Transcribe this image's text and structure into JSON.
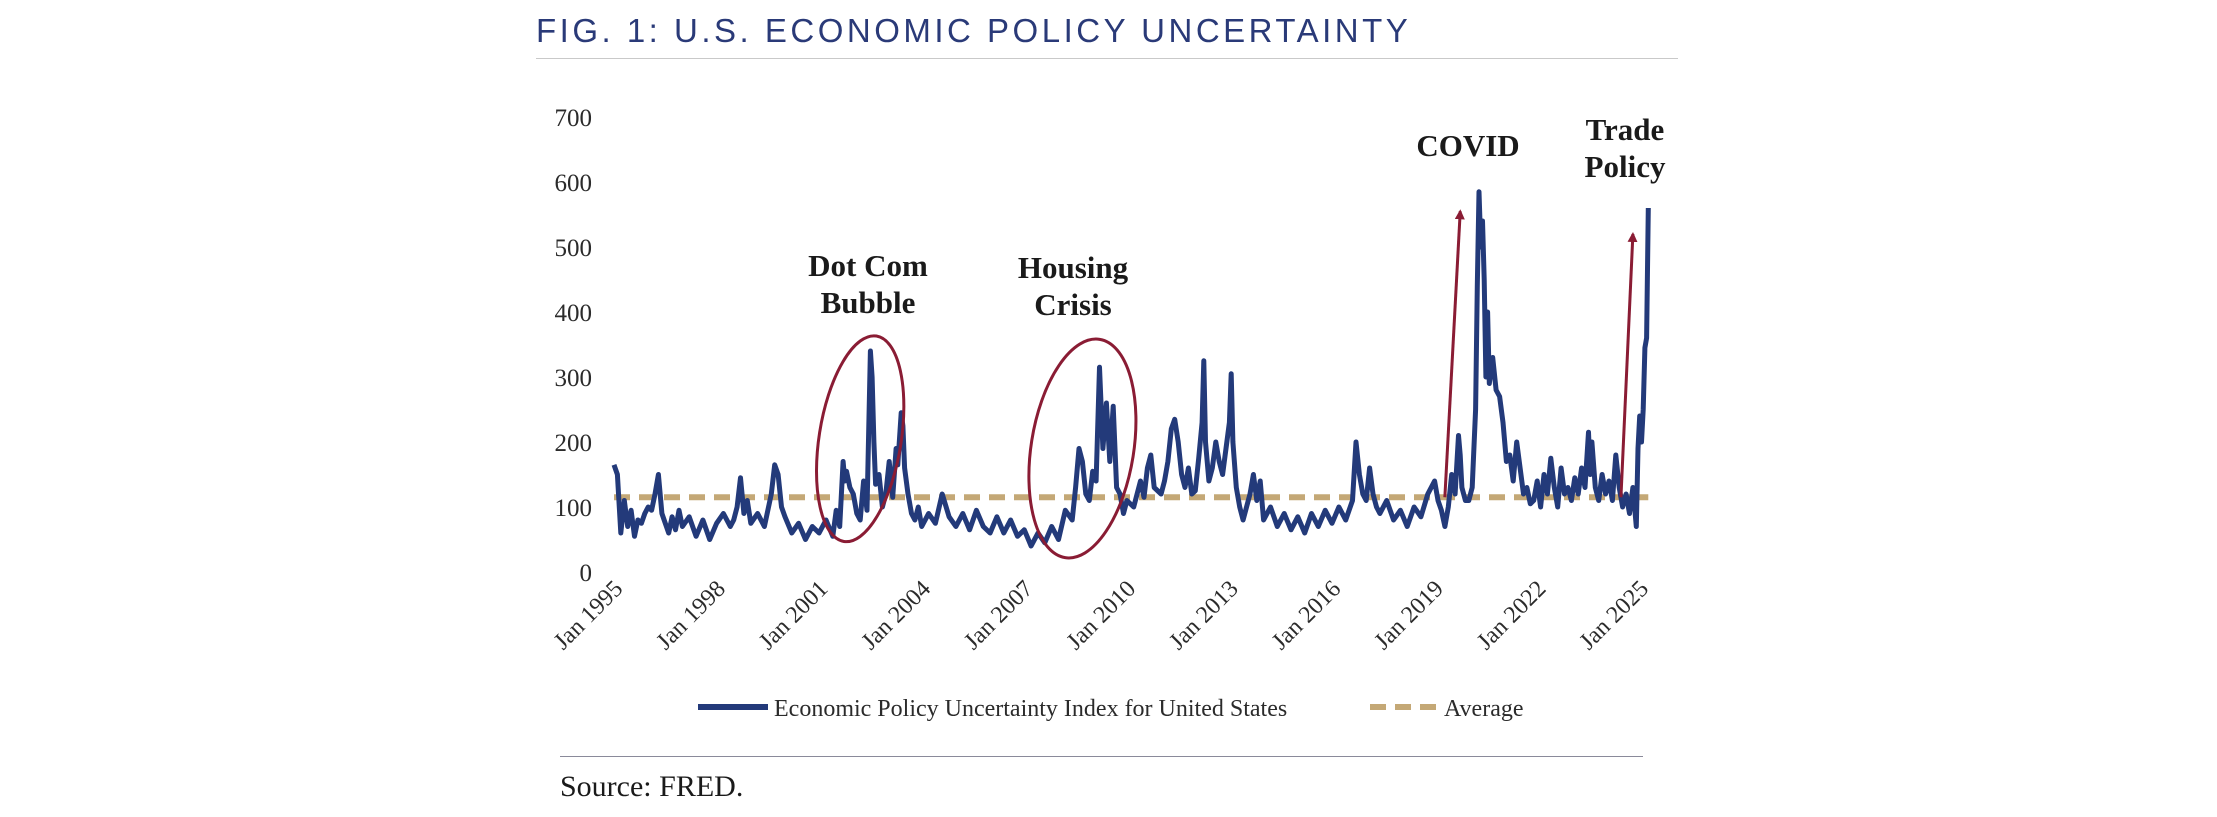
{
  "header": {
    "title": "FIG. 1: U.S. ECONOMIC POLICY UNCERTAINTY"
  },
  "source": "Source: FRED.",
  "colors": {
    "series": "#233a7a",
    "average": "#c4a876",
    "annotation": "#8a1c34",
    "title": "#2a3a78"
  },
  "chart_data": {
    "type": "line",
    "title": "FIG. 1: U.S. ECONOMIC POLICY UNCERTAINTY",
    "xlabel": "",
    "ylabel": "",
    "ylim": [
      0,
      700
    ],
    "xlim": [
      1995.0,
      2025.3
    ],
    "yticks": [
      "0",
      "100",
      "200",
      "300",
      "400",
      "500",
      "600",
      "700"
    ],
    "xticks": [
      {
        "label": "Jan 1995",
        "x": 1995
      },
      {
        "label": "Jan 1998",
        "x": 1998
      },
      {
        "label": "Jan 2001",
        "x": 2001
      },
      {
        "label": "Jan 2004",
        "x": 2004
      },
      {
        "label": "Jan 2007",
        "x": 2007
      },
      {
        "label": "Jan 2010",
        "x": 2010
      },
      {
        "label": "Jan 2013",
        "x": 2013
      },
      {
        "label": "Jan 2016",
        "x": 2016
      },
      {
        "label": "Jan 2019",
        "x": 2019
      },
      {
        "label": "Jan 2022",
        "x": 2022
      },
      {
        "label": "Jan 2025",
        "x": 2025
      }
    ],
    "legend": [
      "Economic Policy Uncertainty Index for United States",
      "Average"
    ],
    "legend_position": "bottom",
    "average": 115,
    "series": [
      {
        "name": "Economic Policy Uncertainty Index for United States",
        "points": [
          [
            1995.0,
            165
          ],
          [
            1995.1,
            150
          ],
          [
            1995.2,
            60
          ],
          [
            1995.3,
            110
          ],
          [
            1995.4,
            70
          ],
          [
            1995.5,
            95
          ],
          [
            1995.6,
            55
          ],
          [
            1995.7,
            80
          ],
          [
            1995.8,
            75
          ],
          [
            1995.9,
            90
          ],
          [
            1996.0,
            100
          ],
          [
            1996.1,
            95
          ],
          [
            1996.2,
            120
          ],
          [
            1996.3,
            150
          ],
          [
            1996.4,
            90
          ],
          [
            1996.5,
            75
          ],
          [
            1996.6,
            60
          ],
          [
            1996.7,
            85
          ],
          [
            1996.8,
            65
          ],
          [
            1996.9,
            95
          ],
          [
            1997.0,
            70
          ],
          [
            1997.2,
            85
          ],
          [
            1997.4,
            55
          ],
          [
            1997.6,
            80
          ],
          [
            1997.8,
            50
          ],
          [
            1998.0,
            75
          ],
          [
            1998.2,
            90
          ],
          [
            1998.4,
            70
          ],
          [
            1998.5,
            80
          ],
          [
            1998.6,
            100
          ],
          [
            1998.7,
            145
          ],
          [
            1998.8,
            90
          ],
          [
            1998.9,
            110
          ],
          [
            1999.0,
            75
          ],
          [
            1999.2,
            90
          ],
          [
            1999.4,
            70
          ],
          [
            1999.6,
            120
          ],
          [
            1999.7,
            165
          ],
          [
            1999.8,
            150
          ],
          [
            1999.9,
            100
          ],
          [
            2000.0,
            85
          ],
          [
            2000.2,
            60
          ],
          [
            2000.4,
            75
          ],
          [
            2000.6,
            50
          ],
          [
            2000.8,
            70
          ],
          [
            2001.0,
            60
          ],
          [
            2001.2,
            80
          ],
          [
            2001.4,
            55
          ],
          [
            2001.5,
            95
          ],
          [
            2001.6,
            70
          ],
          [
            2001.7,
            170
          ],
          [
            2001.75,
            140
          ],
          [
            2001.8,
            155
          ],
          [
            2001.9,
            130
          ],
          [
            2002.0,
            120
          ],
          [
            2002.1,
            90
          ],
          [
            2002.2,
            80
          ],
          [
            2002.3,
            140
          ],
          [
            2002.4,
            95
          ],
          [
            2002.5,
            340
          ],
          [
            2002.55,
            300
          ],
          [
            2002.6,
            200
          ],
          [
            2002.65,
            135
          ],
          [
            2002.75,
            150
          ],
          [
            2002.85,
            100
          ],
          [
            2002.95,
            120
          ],
          [
            2003.05,
            170
          ],
          [
            2003.15,
            115
          ],
          [
            2003.25,
            190
          ],
          [
            2003.3,
            165
          ],
          [
            2003.4,
            245
          ],
          [
            2003.45,
            225
          ],
          [
            2003.5,
            160
          ],
          [
            2003.6,
            120
          ],
          [
            2003.7,
            90
          ],
          [
            2003.8,
            80
          ],
          [
            2003.9,
            100
          ],
          [
            2004.0,
            70
          ],
          [
            2004.2,
            90
          ],
          [
            2004.4,
            75
          ],
          [
            2004.6,
            120
          ],
          [
            2004.8,
            85
          ],
          [
            2005.0,
            70
          ],
          [
            2005.2,
            90
          ],
          [
            2005.4,
            65
          ],
          [
            2005.6,
            95
          ],
          [
            2005.8,
            70
          ],
          [
            2006.0,
            60
          ],
          [
            2006.2,
            85
          ],
          [
            2006.4,
            60
          ],
          [
            2006.6,
            80
          ],
          [
            2006.8,
            55
          ],
          [
            2007.0,
            65
          ],
          [
            2007.2,
            40
          ],
          [
            2007.4,
            60
          ],
          [
            2007.6,
            45
          ],
          [
            2007.8,
            70
          ],
          [
            2008.0,
            50
          ],
          [
            2008.2,
            95
          ],
          [
            2008.4,
            80
          ],
          [
            2008.5,
            130
          ],
          [
            2008.6,
            190
          ],
          [
            2008.7,
            170
          ],
          [
            2008.8,
            120
          ],
          [
            2008.9,
            110
          ],
          [
            2009.0,
            155
          ],
          [
            2009.1,
            140
          ],
          [
            2009.2,
            315
          ],
          [
            2009.3,
            190
          ],
          [
            2009.4,
            260
          ],
          [
            2009.5,
            170
          ],
          [
            2009.6,
            255
          ],
          [
            2009.7,
            130
          ],
          [
            2009.8,
            120
          ],
          [
            2009.9,
            90
          ],
          [
            2010.0,
            110
          ],
          [
            2010.2,
            100
          ],
          [
            2010.4,
            140
          ],
          [
            2010.5,
            115
          ],
          [
            2010.6,
            160
          ],
          [
            2010.7,
            180
          ],
          [
            2010.8,
            130
          ],
          [
            2011.0,
            120
          ],
          [
            2011.1,
            140
          ],
          [
            2011.2,
            170
          ],
          [
            2011.3,
            220
          ],
          [
            2011.4,
            235
          ],
          [
            2011.5,
            200
          ],
          [
            2011.6,
            150
          ],
          [
            2011.7,
            130
          ],
          [
            2011.8,
            160
          ],
          [
            2011.9,
            120
          ],
          [
            2012.0,
            125
          ],
          [
            2012.1,
            175
          ],
          [
            2012.2,
            230
          ],
          [
            2012.25,
            325
          ],
          [
            2012.3,
            200
          ],
          [
            2012.4,
            140
          ],
          [
            2012.5,
            160
          ],
          [
            2012.6,
            200
          ],
          [
            2012.7,
            170
          ],
          [
            2012.8,
            150
          ],
          [
            2012.9,
            190
          ],
          [
            2013.0,
            230
          ],
          [
            2013.05,
            305
          ],
          [
            2013.1,
            200
          ],
          [
            2013.2,
            130
          ],
          [
            2013.3,
            100
          ],
          [
            2013.4,
            80
          ],
          [
            2013.6,
            120
          ],
          [
            2013.7,
            150
          ],
          [
            2013.8,
            110
          ],
          [
            2013.9,
            140
          ],
          [
            2014.0,
            80
          ],
          [
            2014.2,
            100
          ],
          [
            2014.4,
            70
          ],
          [
            2014.6,
            90
          ],
          [
            2014.8,
            65
          ],
          [
            2015.0,
            85
          ],
          [
            2015.2,
            60
          ],
          [
            2015.4,
            90
          ],
          [
            2015.6,
            70
          ],
          [
            2015.8,
            95
          ],
          [
            2016.0,
            75
          ],
          [
            2016.2,
            100
          ],
          [
            2016.4,
            80
          ],
          [
            2016.6,
            110
          ],
          [
            2016.7,
            200
          ],
          [
            2016.8,
            150
          ],
          [
            2016.9,
            120
          ],
          [
            2017.0,
            110
          ],
          [
            2017.1,
            160
          ],
          [
            2017.2,
            120
          ],
          [
            2017.3,
            100
          ],
          [
            2017.4,
            90
          ],
          [
            2017.6,
            110
          ],
          [
            2017.8,
            80
          ],
          [
            2018.0,
            95
          ],
          [
            2018.2,
            70
          ],
          [
            2018.4,
            100
          ],
          [
            2018.6,
            85
          ],
          [
            2018.8,
            120
          ],
          [
            2019.0,
            140
          ],
          [
            2019.1,
            110
          ],
          [
            2019.2,
            95
          ],
          [
            2019.3,
            70
          ],
          [
            2019.4,
            100
          ],
          [
            2019.5,
            150
          ],
          [
            2019.6,
            120
          ],
          [
            2019.7,
            210
          ],
          [
            2019.75,
            180
          ],
          [
            2019.8,
            130
          ],
          [
            2019.9,
            110
          ],
          [
            2020.0,
            110
          ],
          [
            2020.1,
            130
          ],
          [
            2020.2,
            250
          ],
          [
            2020.25,
            440
          ],
          [
            2020.3,
            585
          ],
          [
            2020.35,
            500
          ],
          [
            2020.4,
            540
          ],
          [
            2020.45,
            450
          ],
          [
            2020.5,
            300
          ],
          [
            2020.55,
            400
          ],
          [
            2020.6,
            290
          ],
          [
            2020.7,
            330
          ],
          [
            2020.8,
            280
          ],
          [
            2020.9,
            270
          ],
          [
            2021.0,
            230
          ],
          [
            2021.1,
            170
          ],
          [
            2021.2,
            180
          ],
          [
            2021.3,
            140
          ],
          [
            2021.4,
            200
          ],
          [
            2021.5,
            160
          ],
          [
            2021.6,
            120
          ],
          [
            2021.7,
            130
          ],
          [
            2021.8,
            105
          ],
          [
            2021.9,
            110
          ],
          [
            2022.0,
            140
          ],
          [
            2022.1,
            100
          ],
          [
            2022.2,
            150
          ],
          [
            2022.3,
            120
          ],
          [
            2022.4,
            175
          ],
          [
            2022.5,
            130
          ],
          [
            2022.6,
            100
          ],
          [
            2022.7,
            160
          ],
          [
            2022.8,
            120
          ],
          [
            2022.9,
            130
          ],
          [
            2023.0,
            110
          ],
          [
            2023.1,
            145
          ],
          [
            2023.2,
            120
          ],
          [
            2023.3,
            160
          ],
          [
            2023.4,
            130
          ],
          [
            2023.5,
            215
          ],
          [
            2023.55,
            150
          ],
          [
            2023.6,
            200
          ],
          [
            2023.7,
            130
          ],
          [
            2023.8,
            110
          ],
          [
            2023.9,
            150
          ],
          [
            2024.0,
            120
          ],
          [
            2024.1,
            140
          ],
          [
            2024.2,
            110
          ],
          [
            2024.3,
            180
          ],
          [
            2024.4,
            130
          ],
          [
            2024.5,
            100
          ],
          [
            2024.6,
            120
          ],
          [
            2024.7,
            90
          ],
          [
            2024.8,
            130
          ],
          [
            2024.9,
            70
          ],
          [
            2024.95,
            190
          ],
          [
            2025.0,
            240
          ],
          [
            2025.05,
            200
          ],
          [
            2025.1,
            250
          ],
          [
            2025.15,
            345
          ],
          [
            2025.2,
            360
          ],
          [
            2025.25,
            560
          ]
        ]
      },
      {
        "name": "Average",
        "points": [
          [
            1995.0,
            115
          ],
          [
            2025.25,
            115
          ]
        ]
      }
    ],
    "annotations": [
      {
        "text": [
          "Dot Com",
          "Bubble"
        ],
        "type": "ellipse",
        "center": [
          2002.2,
          205
        ],
        "rx_years": 1.2,
        "ry_units": 160
      },
      {
        "text": [
          "Housing",
          "Crisis"
        ],
        "type": "ellipse",
        "center": [
          2008.7,
          190
        ],
        "rx_years": 1.5,
        "ry_units": 170
      },
      {
        "text": [
          "COVID"
        ],
        "type": "arrow",
        "from": [
          2019.3,
          115
        ],
        "to": [
          2019.75,
          555
        ]
      },
      {
        "text": [
          "Trade",
          "Policy"
        ],
        "type": "arrow",
        "from": [
          2024.45,
          115
        ],
        "to": [
          2024.8,
          520
        ]
      }
    ]
  }
}
